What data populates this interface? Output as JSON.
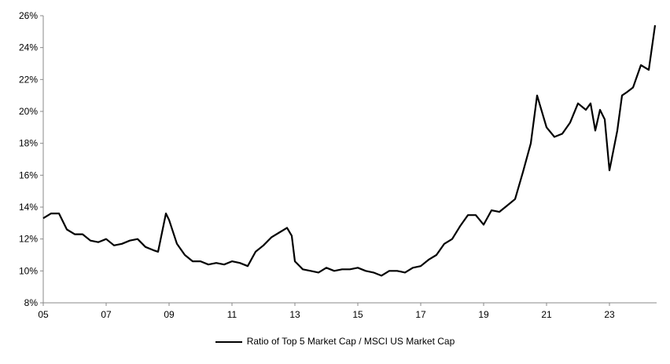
{
  "chart_data": {
    "type": "line",
    "title": "",
    "xlabel": "",
    "ylabel": "",
    "xlim": [
      2005,
      2024.55
    ],
    "ylim": [
      8,
      26
    ],
    "grid": false,
    "legend_placement": "bottom",
    "y_ticks": [
      8,
      10,
      12,
      14,
      16,
      18,
      20,
      22,
      24,
      26
    ],
    "y_tick_labels": [
      "8%",
      "10%",
      "12%",
      "14%",
      "16%",
      "18%",
      "20%",
      "22%",
      "24%",
      "26%"
    ],
    "x_ticks": [
      2005,
      2007,
      2009,
      2011,
      2013,
      2015,
      2017,
      2019,
      2021,
      2023
    ],
    "x_tick_labels": [
      "05",
      "07",
      "09",
      "11",
      "13",
      "15",
      "17",
      "19",
      "21",
      "23"
    ],
    "series": [
      {
        "name": "Ratio of Top 5 Market Cap / MSCI US Market Cap",
        "color": "#000000",
        "x": [
          2005.0,
          2005.25,
          2005.5,
          2005.75,
          2006.0,
          2006.25,
          2006.5,
          2006.75,
          2007.0,
          2007.25,
          2007.5,
          2007.75,
          2008.0,
          2008.25,
          2008.5,
          2008.65,
          2008.9,
          2009.0,
          2009.25,
          2009.5,
          2009.75,
          2010.0,
          2010.25,
          2010.5,
          2010.75,
          2011.0,
          2011.25,
          2011.5,
          2011.75,
          2012.0,
          2012.25,
          2012.5,
          2012.75,
          2012.9,
          2013.0,
          2013.25,
          2013.5,
          2013.75,
          2014.0,
          2014.25,
          2014.5,
          2014.75,
          2015.0,
          2015.25,
          2015.5,
          2015.75,
          2016.0,
          2016.25,
          2016.5,
          2016.75,
          2017.0,
          2017.25,
          2017.5,
          2017.75,
          2018.0,
          2018.25,
          2018.5,
          2018.75,
          2019.0,
          2019.25,
          2019.5,
          2019.75,
          2020.0,
          2020.25,
          2020.5,
          2020.7,
          2021.0,
          2021.25,
          2021.5,
          2021.75,
          2022.0,
          2022.25,
          2022.4,
          2022.55,
          2022.7,
          2022.85,
          2023.0,
          2023.25,
          2023.4,
          2023.55,
          2023.75,
          2024.0,
          2024.25,
          2024.45
        ],
        "values": [
          13.3,
          13.6,
          13.6,
          12.6,
          12.3,
          12.3,
          11.9,
          11.8,
          12.0,
          11.6,
          11.7,
          11.9,
          12.0,
          11.5,
          11.3,
          11.2,
          13.6,
          13.2,
          11.7,
          11.0,
          10.6,
          10.6,
          10.4,
          10.5,
          10.4,
          10.6,
          10.5,
          10.3,
          11.2,
          11.6,
          12.1,
          12.4,
          12.7,
          12.2,
          10.6,
          10.1,
          10.0,
          9.9,
          10.2,
          10.0,
          10.1,
          10.1,
          10.2,
          10.0,
          9.9,
          9.7,
          10.0,
          10.0,
          9.9,
          10.2,
          10.3,
          10.7,
          11.0,
          11.7,
          12.0,
          12.8,
          13.5,
          13.5,
          12.9,
          13.8,
          13.7,
          14.1,
          14.5,
          16.2,
          18.0,
          21.0,
          19.0,
          18.4,
          18.6,
          19.3,
          20.5,
          20.1,
          20.5,
          18.8,
          20.1,
          19.5,
          16.3,
          18.8,
          21.0,
          21.2,
          21.5,
          22.9,
          22.6,
          25.4
        ]
      }
    ]
  }
}
